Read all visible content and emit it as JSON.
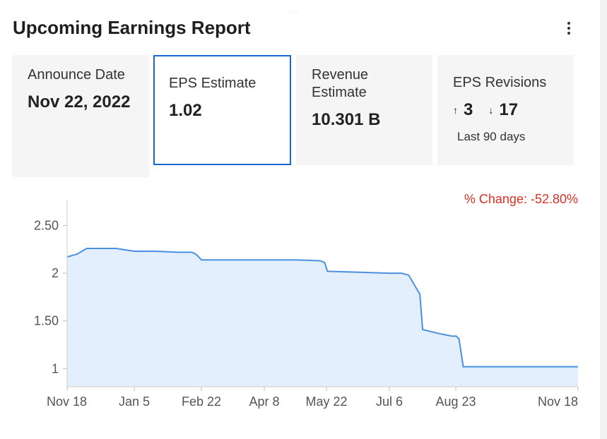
{
  "header": {
    "title": "Upcoming Earnings Report"
  },
  "cards": {
    "announce": {
      "label": "Announce Date",
      "value": "Nov 22, 2022"
    },
    "eps": {
      "label": "EPS Estimate",
      "value": "1.02"
    },
    "revenue": {
      "label": "Revenue Estimate",
      "value": "10.301 B"
    },
    "revisions": {
      "label": "EPS Revisions",
      "up_icon": "arrow-up-icon",
      "up": "3",
      "down_icon": "arrow-down-icon",
      "down": "17",
      "period": "Last 90 days"
    }
  },
  "percent_change": "% Change: -52.80%",
  "colors": {
    "accent": "#1967d2",
    "line": "#4a90e2",
    "fill": "#e3effc",
    "negative": "#d93025"
  },
  "chart_data": {
    "type": "area",
    "x": [
      "Nov 18",
      "Nov 25",
      "Dec 2",
      "Dec 9",
      "Dec 16",
      "Dec 23",
      "Jan 5",
      "Jan 20",
      "Feb 5",
      "Feb 15",
      "Feb 18",
      "Feb 22",
      "Mar 15",
      "Apr 8",
      "May 1",
      "May 18",
      "May 21",
      "May 23",
      "Jun 15",
      "Jul 6",
      "Jul 15",
      "Jul 20",
      "Jul 28",
      "Jul 30",
      "Aug 10",
      "Aug 20",
      "Aug 23",
      "Aug 25",
      "Aug 28",
      "Sep 15",
      "Oct 15",
      "Nov 18"
    ],
    "series": [
      {
        "values": [
          2.17,
          2.2,
          2.26,
          2.26,
          2.26,
          2.26,
          2.23,
          2.23,
          2.22,
          2.22,
          2.2,
          2.14,
          2.14,
          2.14,
          2.14,
          2.13,
          2.11,
          2.02,
          2.01,
          2.0,
          2.0,
          1.98,
          1.78,
          1.41,
          1.37,
          1.34,
          1.34,
          1.31,
          1.02,
          1.02,
          1.02,
          1.02
        ]
      }
    ],
    "xticks": [
      "Nov 18",
      "Jan 5",
      "Feb 22",
      "Apr 8",
      "May 22",
      "Jul 6",
      "Aug 23",
      "Nov 18"
    ],
    "yticks": [
      1,
      1.5,
      2,
      2.5
    ],
    "ytick_labels": [
      "1",
      "1.50",
      "2",
      "2.50"
    ],
    "ylim": [
      0.81,
      2.77
    ],
    "grid": false,
    "legend": "none"
  }
}
